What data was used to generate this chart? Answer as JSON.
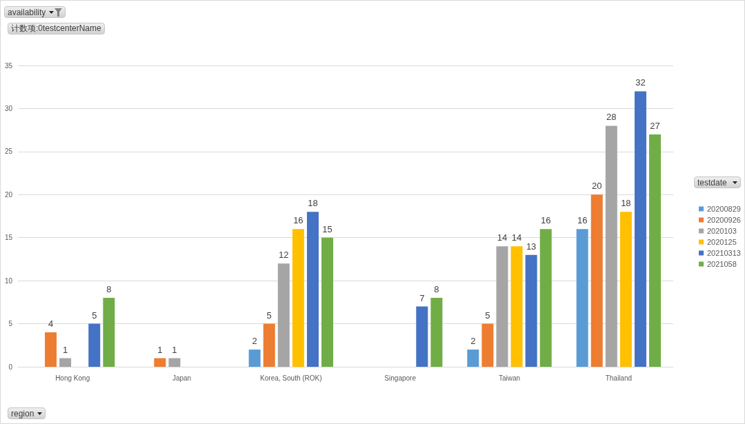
{
  "chart_data": {
    "type": "bar",
    "ylabel": "计数项:0testcenterName",
    "xlabel": "region",
    "legend_title": "testdate",
    "annotations": [
      "availability"
    ],
    "categories": [
      "Hong Kong",
      "Japan",
      "Korea, South (ROK)",
      "Singapore",
      "Taiwan",
      "Thailand"
    ],
    "series": [
      {
        "name": "20200829",
        "color": "#5b9bd5",
        "values": [
          null,
          null,
          2,
          null,
          2,
          16
        ]
      },
      {
        "name": "20200926",
        "color": "#ed7d31",
        "values": [
          4,
          1,
          5,
          null,
          5,
          20
        ]
      },
      {
        "name": "2020103",
        "color": "#a5a5a5",
        "values": [
          1,
          1,
          12,
          null,
          14,
          28
        ]
      },
      {
        "name": "2020125",
        "color": "#ffc000",
        "values": [
          null,
          null,
          16,
          null,
          14,
          18
        ]
      },
      {
        "name": "20210313",
        "color": "#4472c4",
        "values": [
          5,
          null,
          18,
          7,
          13,
          32
        ]
      },
      {
        "name": "2021058",
        "color": "#70ad47",
        "values": [
          8,
          null,
          15,
          8,
          16,
          27
        ]
      }
    ],
    "ylim": [
      0,
      35
    ],
    "yticks": [
      0,
      5,
      10,
      15,
      20,
      25,
      30,
      35
    ],
    "grid": "y",
    "legend": "right",
    "data_labels": true
  }
}
